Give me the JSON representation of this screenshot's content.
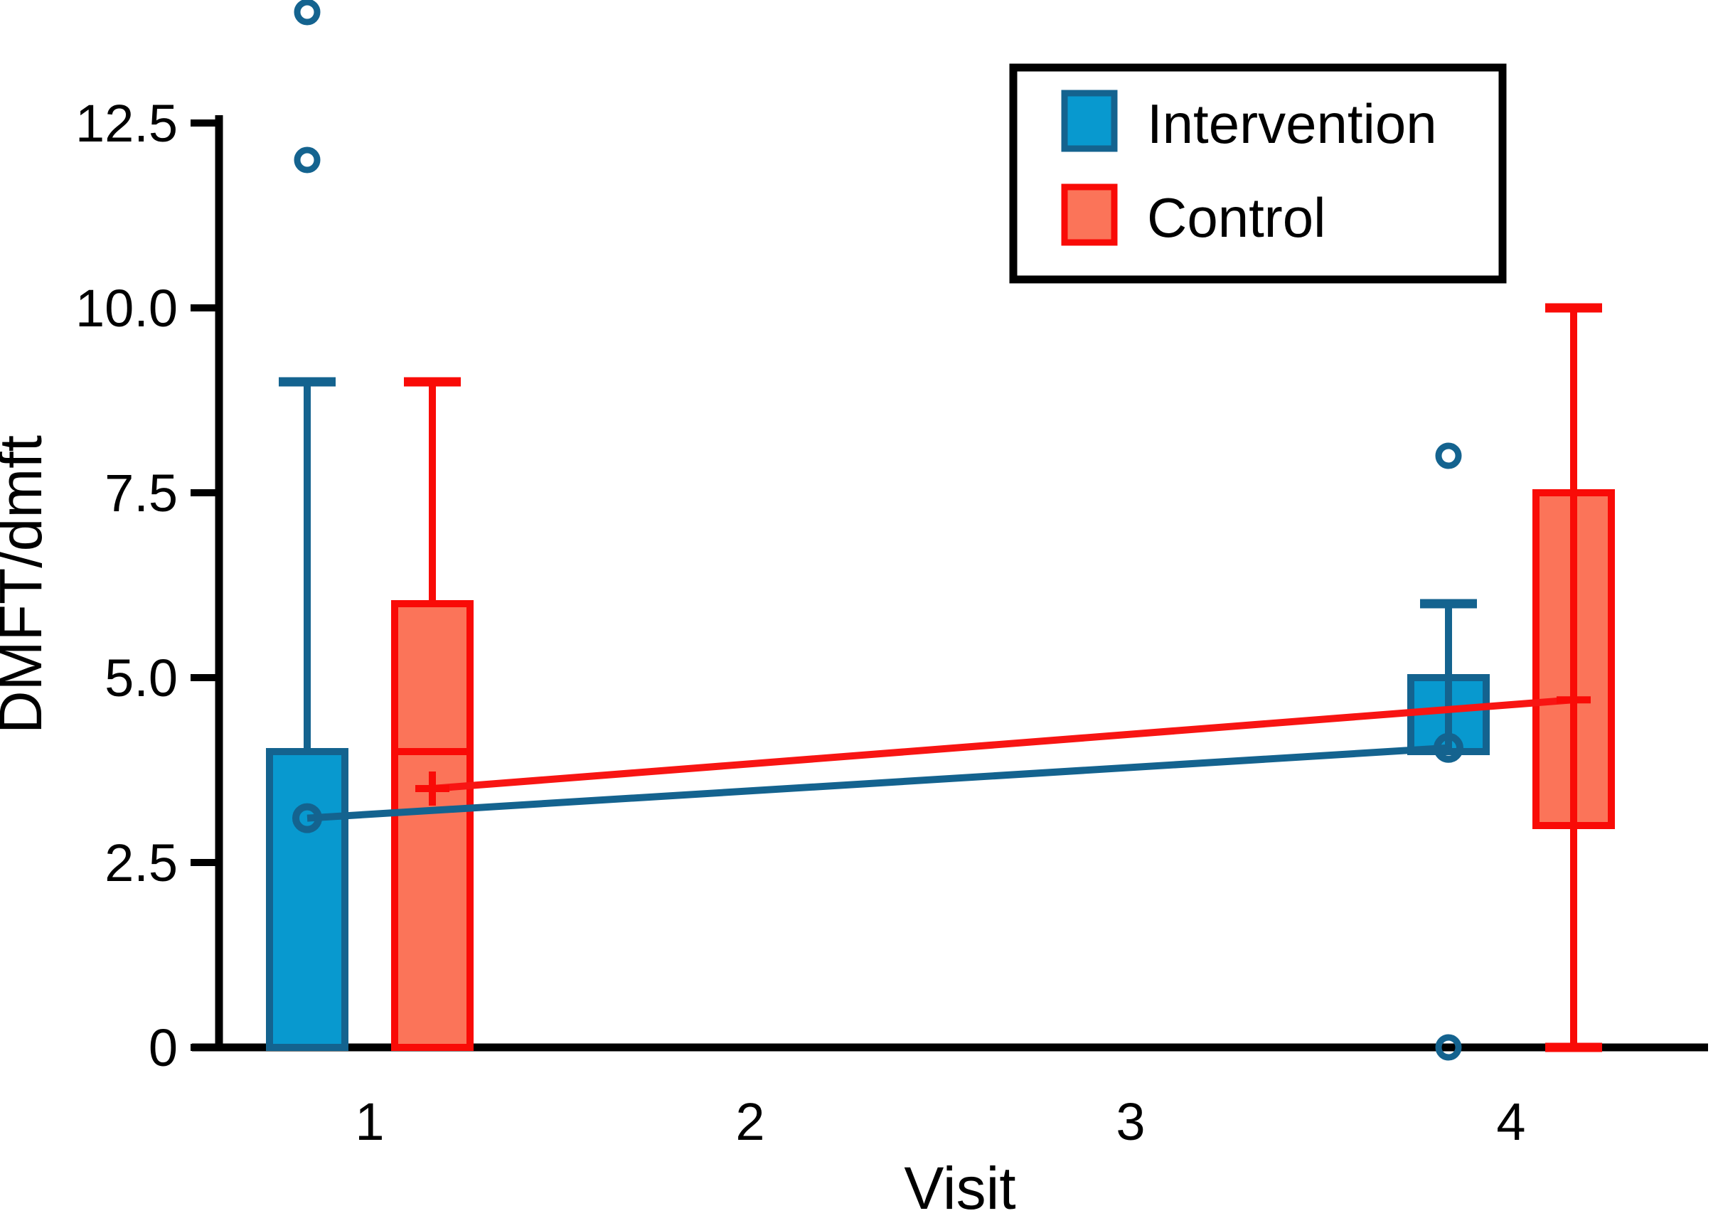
{
  "figure": {
    "background": "#ffffff",
    "axis_color": "#000000"
  },
  "axes": {
    "xlabel": "Visit",
    "ylabel": "DMFT/dmft",
    "x_tick_labels": [
      "1",
      "2",
      "3",
      "4"
    ],
    "y_tick_labels": [
      "0",
      "2.5",
      "5.0",
      "7.5",
      "10.0",
      "12.5"
    ]
  },
  "legend": {
    "items": [
      {
        "label": "Intervention",
        "fill": "#0899CF",
        "stroke": "#14638F"
      },
      {
        "label": "Control",
        "fill": "#FB7459",
        "stroke": "#F90B07"
      }
    ]
  },
  "chart_data": {
    "type": "boxplot",
    "title": "",
    "xlabel": "Visit",
    "ylabel": "DMFT/dmft",
    "xlim": [
      0.5,
      4.6
    ],
    "ylim": [
      0,
      14.2
    ],
    "grid": false,
    "legend_position": "top-right",
    "x_ticks": [
      {
        "value": 1,
        "label": "1"
      },
      {
        "value": 2,
        "label": "2"
      },
      {
        "value": 3,
        "label": "3"
      },
      {
        "value": 4,
        "label": "4"
      }
    ],
    "y_ticks": [
      {
        "value": 0,
        "label": "0"
      },
      {
        "value": 2.5,
        "label": "2.5"
      },
      {
        "value": 5,
        "label": "5.0"
      },
      {
        "value": 7.5,
        "label": "7.5"
      },
      {
        "value": 10,
        "label": "10.0"
      },
      {
        "value": 12.5,
        "label": "12.5"
      }
    ],
    "series": [
      {
        "name": "Intervention",
        "fill": "#0899CF",
        "stroke": "#14638F",
        "mean_marker": "circle",
        "dodge": -1,
        "boxes": [
          {
            "visit": 1,
            "q1": 0,
            "median": 4,
            "q3": 4,
            "whisker_top": 9,
            "whisker_bottom": null,
            "whisker_line": [
              9,
              4
            ],
            "caps": [
              9
            ],
            "mean": 3.1,
            "outliers": [
              12,
              14
            ]
          },
          {
            "visit": 4,
            "q1": 4,
            "median": 4,
            "q3": 5,
            "whisker_top": 6,
            "whisker_bottom": null,
            "whisker_line": [
              6,
              4
            ],
            "caps": [
              6
            ],
            "mean": 4.05,
            "outliers": [
              8,
              0
            ]
          }
        ],
        "mean_trend": [
          [
            1,
            3.1
          ],
          [
            4,
            4.05
          ]
        ]
      },
      {
        "name": "Control",
        "fill": "#FB7459",
        "stroke": "#F90B07",
        "mean_marker": "plus",
        "dodge": 1,
        "boxes": [
          {
            "visit": 1,
            "q1": 0,
            "median": 4,
            "q3": 6,
            "whisker_top": 9,
            "whisker_bottom": null,
            "whisker_line": [
              9,
              6
            ],
            "caps": [
              9
            ],
            "mean": 3.5,
            "outliers": []
          },
          {
            "visit": 4,
            "q1": 3,
            "median": null,
            "q3": 7.5,
            "whisker_top": 10,
            "whisker_bottom": 0,
            "whisker_line": [
              10,
              0
            ],
            "caps": [
              10,
              0
            ],
            "mean": 4.7,
            "outliers": []
          }
        ],
        "mean_trend": [
          [
            1,
            3.5
          ],
          [
            4,
            4.7
          ]
        ]
      }
    ]
  }
}
